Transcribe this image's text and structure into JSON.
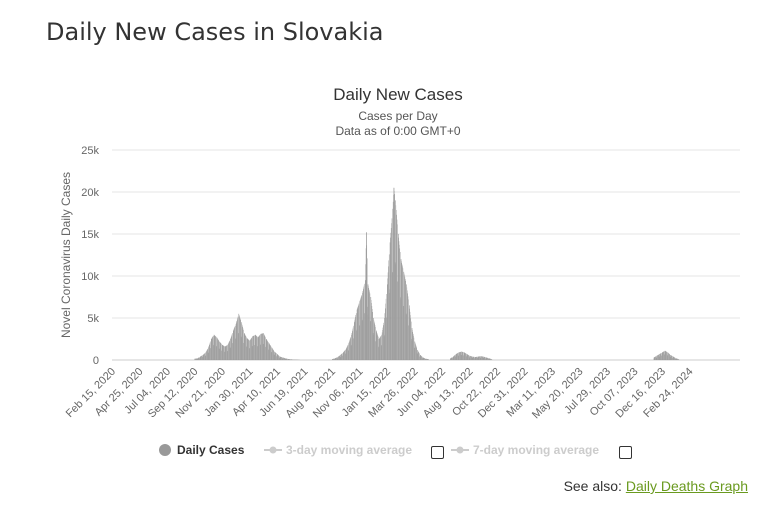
{
  "page": {
    "title": "Daily New Cases in Slovakia",
    "see_also_label": "See also:",
    "see_also_link": "Daily Deaths Graph"
  },
  "chart_data": {
    "type": "bar",
    "title": "Daily New Cases",
    "subtitle": "Cases per Day",
    "subtitle2": "Data as of 0:00 GMT+0",
    "ylabel": "Novel Coronavirus Daily Cases",
    "xlabel": "",
    "ylim": [
      0,
      25000
    ],
    "y_ticks": [
      0,
      5000,
      10000,
      15000,
      20000,
      25000
    ],
    "y_tick_labels": [
      "0",
      "5k",
      "10k",
      "15k",
      "20k",
      "25k"
    ],
    "x_range": [
      "2020-02-15",
      "2024-03-31"
    ],
    "x_tick_labels": [
      "Feb 15, 2020",
      "Apr 25, 2020",
      "Jul 04, 2020",
      "Sep 12, 2020",
      "Nov 21, 2020",
      "Jan 30, 2021",
      "Apr 10, 2021",
      "Jun 19, 2021",
      "Aug 28, 2021",
      "Nov 06, 2021",
      "Jan 15, 2022",
      "Mar 26, 2022",
      "Jun 04, 2022",
      "Aug 13, 2022",
      "Oct 22, 2022",
      "Dec 31, 2022",
      "Mar 11, 2023",
      "May 20, 2023",
      "Jul 29, 2023",
      "Oct 07, 2023",
      "Dec 16, 2023",
      "Feb 24, 2024"
    ],
    "grid": true,
    "legend_position": "bottom",
    "legend": [
      "Daily Cases",
      "3-day moving average",
      "7-day moving average"
    ],
    "bar_color": "#999999",
    "series": [
      {
        "name": "Daily Cases",
        "points": [
          [
            "2020-09-12",
            150
          ],
          [
            "2020-09-19",
            200
          ],
          [
            "2020-09-26",
            400
          ],
          [
            "2020-10-03",
            600
          ],
          [
            "2020-10-10",
            900
          ],
          [
            "2020-10-17",
            1500
          ],
          [
            "2020-10-24",
            2500
          ],
          [
            "2020-10-31",
            3000
          ],
          [
            "2020-11-07",
            2700
          ],
          [
            "2020-11-14",
            2200
          ],
          [
            "2020-11-21",
            1800
          ],
          [
            "2020-11-28",
            1600
          ],
          [
            "2020-12-05",
            1800
          ],
          [
            "2020-12-12",
            2500
          ],
          [
            "2020-12-19",
            3500
          ],
          [
            "2020-12-26",
            4300
          ],
          [
            "2021-01-02",
            5500
          ],
          [
            "2021-01-09",
            4500
          ],
          [
            "2021-01-16",
            3200
          ],
          [
            "2021-01-23",
            2600
          ],
          [
            "2021-01-30",
            2300
          ],
          [
            "2021-02-06",
            2800
          ],
          [
            "2021-02-13",
            3000
          ],
          [
            "2021-02-20",
            2700
          ],
          [
            "2021-02-27",
            3100
          ],
          [
            "2021-03-06",
            3200
          ],
          [
            "2021-03-13",
            2500
          ],
          [
            "2021-03-20",
            2000
          ],
          [
            "2021-03-27",
            1500
          ],
          [
            "2021-04-03",
            1000
          ],
          [
            "2021-04-10",
            700
          ],
          [
            "2021-04-17",
            400
          ],
          [
            "2021-04-24",
            300
          ],
          [
            "2021-05-01",
            200
          ],
          [
            "2021-05-08",
            120
          ],
          [
            "2021-05-15",
            80
          ],
          [
            "2021-05-22",
            50
          ],
          [
            "2021-05-29",
            40
          ],
          [
            "2021-06-05",
            30
          ],
          [
            "2021-08-28",
            100
          ],
          [
            "2021-09-04",
            200
          ],
          [
            "2021-09-11",
            350
          ],
          [
            "2021-09-18",
            600
          ],
          [
            "2021-09-25",
            900
          ],
          [
            "2021-10-02",
            1300
          ],
          [
            "2021-10-09",
            2000
          ],
          [
            "2021-10-16",
            3000
          ],
          [
            "2021-10-23",
            4500
          ],
          [
            "2021-10-30",
            6000
          ],
          [
            "2021-11-06",
            7000
          ],
          [
            "2021-11-13",
            8000
          ],
          [
            "2021-11-20",
            9500
          ],
          [
            "2021-11-23",
            15200
          ],
          [
            "2021-11-27",
            9000
          ],
          [
            "2021-12-04",
            7500
          ],
          [
            "2021-12-11",
            5000
          ],
          [
            "2021-12-18",
            3500
          ],
          [
            "2021-12-25",
            2500
          ],
          [
            "2022-01-01",
            3000
          ],
          [
            "2022-01-08",
            5000
          ],
          [
            "2022-01-15",
            9000
          ],
          [
            "2022-01-22",
            14000
          ],
          [
            "2022-01-29",
            18000
          ],
          [
            "2022-02-01",
            20500
          ],
          [
            "2022-02-05",
            19000
          ],
          [
            "2022-02-12",
            15000
          ],
          [
            "2022-02-19",
            12000
          ],
          [
            "2022-02-26",
            10500
          ],
          [
            "2022-03-05",
            9000
          ],
          [
            "2022-03-12",
            6500
          ],
          [
            "2022-03-19",
            3800
          ],
          [
            "2022-03-26",
            2200
          ],
          [
            "2022-04-02",
            1200
          ],
          [
            "2022-04-09",
            600
          ],
          [
            "2022-04-16",
            300
          ],
          [
            "2022-04-23",
            150
          ],
          [
            "2022-04-30",
            100
          ],
          [
            "2022-06-25",
            200
          ],
          [
            "2022-07-02",
            400
          ],
          [
            "2022-07-09",
            700
          ],
          [
            "2022-07-16",
            900
          ],
          [
            "2022-07-23",
            1000
          ],
          [
            "2022-07-30",
            900
          ],
          [
            "2022-08-06",
            700
          ],
          [
            "2022-08-13",
            500
          ],
          [
            "2022-08-20",
            400
          ],
          [
            "2022-08-27",
            350
          ],
          [
            "2022-09-03",
            400
          ],
          [
            "2022-09-10",
            450
          ],
          [
            "2022-09-17",
            400
          ],
          [
            "2022-09-24",
            300
          ],
          [
            "2022-10-01",
            200
          ],
          [
            "2022-10-08",
            100
          ],
          [
            "2023-11-25",
            300
          ],
          [
            "2023-12-02",
            500
          ],
          [
            "2023-12-09",
            700
          ],
          [
            "2023-12-16",
            900
          ],
          [
            "2023-12-23",
            1100
          ],
          [
            "2023-12-30",
            900
          ],
          [
            "2024-01-06",
            600
          ],
          [
            "2024-01-13",
            400
          ],
          [
            "2024-01-20",
            200
          ],
          [
            "2024-01-27",
            100
          ]
        ]
      }
    ]
  }
}
